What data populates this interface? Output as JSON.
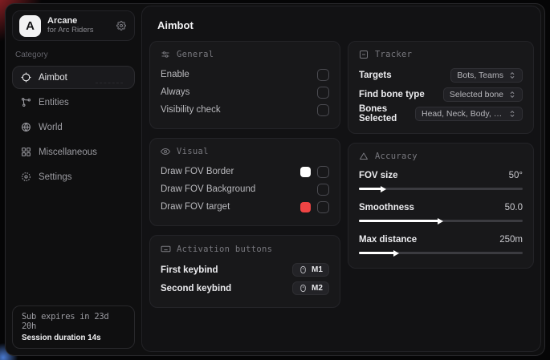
{
  "app": {
    "name": "Arcane",
    "subtitle": "for Arc Riders",
    "logo_letter": "A"
  },
  "sidebar": {
    "category_label": "Category",
    "items": [
      {
        "label": "Aimbot"
      },
      {
        "label": "Entities"
      },
      {
        "label": "World"
      },
      {
        "label": "Miscellaneous"
      },
      {
        "label": "Settings"
      }
    ],
    "status": {
      "sub_expires": "Sub expires in 23d 20h",
      "session_duration": "Session duration 14s"
    }
  },
  "main": {
    "title": "Aimbot",
    "general": {
      "title": "General",
      "rows": [
        {
          "label": "Enable",
          "checked": false
        },
        {
          "label": "Always",
          "checked": false
        },
        {
          "label": "Visibility check",
          "checked": false
        }
      ]
    },
    "visual": {
      "title": "Visual",
      "rows": [
        {
          "label": "Draw FOV Border",
          "swatch": "#ffffff",
          "checked": false
        },
        {
          "label": "Draw FOV Background",
          "checked": false
        },
        {
          "label": "Draw FOV target",
          "swatch": "#ef4444",
          "checked": false
        }
      ]
    },
    "activation": {
      "title": "Activation buttons",
      "rows": [
        {
          "label": "First keybind",
          "key": "M1"
        },
        {
          "label": "Second keybind",
          "key": "M2"
        }
      ]
    },
    "tracker": {
      "title": "Tracker",
      "rows": [
        {
          "label": "Targets",
          "value": "Bots, Teams"
        },
        {
          "label": "Find bone type",
          "value": "Selected bone"
        },
        {
          "label": "Bones Selected",
          "value": "Head, Neck, Body, Fe.."
        }
      ]
    },
    "accuracy": {
      "title": "Accuracy",
      "rows": [
        {
          "label": "FOV size",
          "value": "50°",
          "percent": 14
        },
        {
          "label": "Smoothness",
          "value": "50.0",
          "percent": 49
        },
        {
          "label": "Max distance",
          "value": "250m",
          "percent": 22
        }
      ]
    }
  },
  "colors": {
    "accent_red": "#ef4444",
    "swatch_white": "#ffffff"
  }
}
